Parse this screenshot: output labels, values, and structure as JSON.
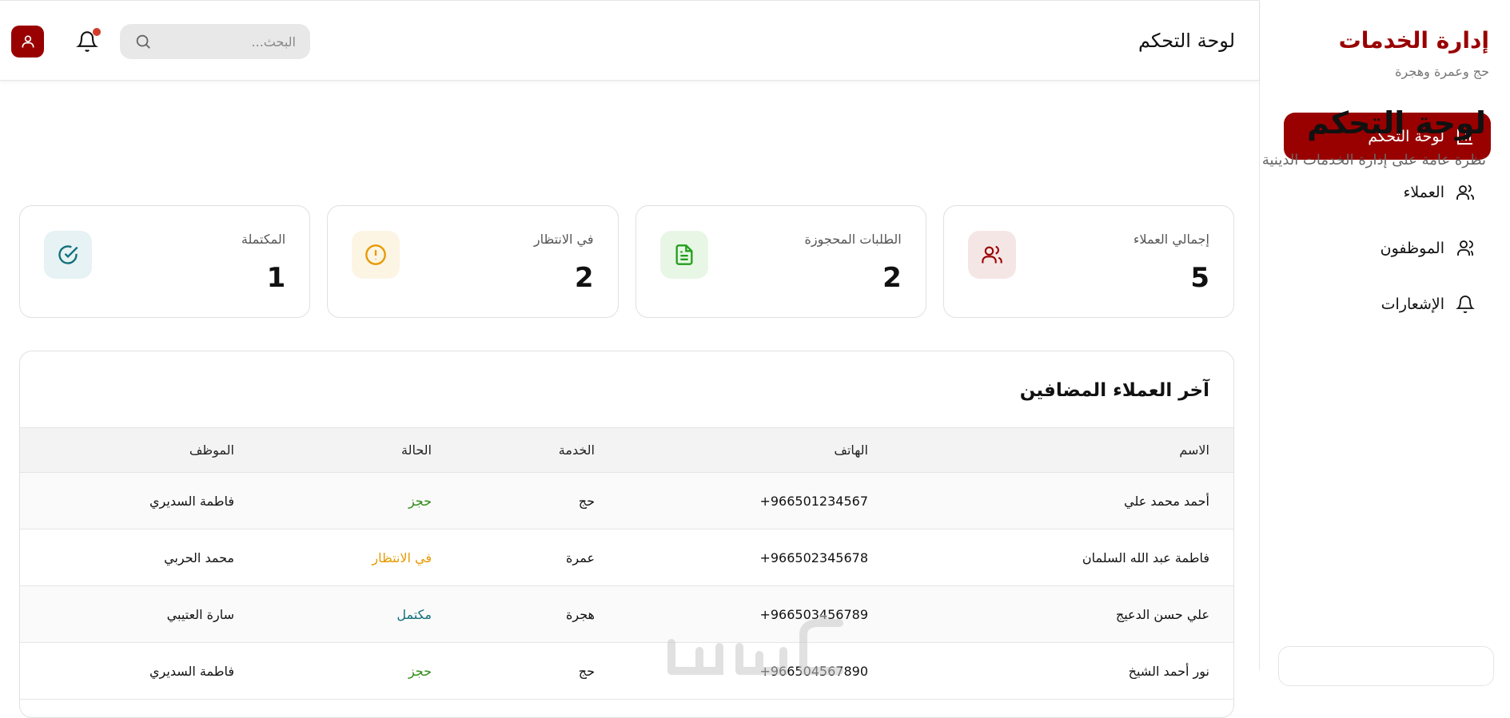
{
  "sidebar": {
    "title": "إدارة الخدمات",
    "subtitle": "حج وعمرة وهجرة",
    "items": [
      {
        "label": "لوحة التحكم",
        "icon": "bar-chart-icon",
        "active": true
      },
      {
        "label": "العملاء",
        "icon": "users-icon"
      },
      {
        "label": "الموظفون",
        "icon": "user-group-icon"
      },
      {
        "label": "الإشعارات",
        "icon": "bell-icon"
      }
    ]
  },
  "header": {
    "title": "لوحة التحكم",
    "search_placeholder": "البحث...",
    "notification_dot": true
  },
  "main": {
    "title": "لوحة التحكم",
    "subtitle": "نظرة عامة على إدارة الخدمات الدينية",
    "stats": [
      {
        "label": "إجمالي العملاء",
        "value": "5",
        "icon": "users-icon",
        "color": "#990000",
        "bg": "#f5e6e6"
      },
      {
        "label": "الطلبات المحجوزة",
        "value": "2",
        "icon": "document-icon",
        "color": "#22a01a",
        "bg": "#e8f6e6"
      },
      {
        "label": "في الانتظار",
        "value": "2",
        "icon": "alert-circle-icon",
        "color": "#e69a00",
        "bg": "#fdf5e4"
      },
      {
        "label": "المكتملة",
        "value": "1",
        "icon": "check-circle-icon",
        "color": "#0f6f7a",
        "bg": "#e6f2f3"
      }
    ],
    "recent": {
      "title": "آخر العملاء المضافين",
      "columns": [
        "الاسم",
        "الهاتف",
        "الخدمة",
        "الحالة",
        "الموظف"
      ],
      "rows": [
        {
          "name": "أحمد محمد علي",
          "phone": "+966501234567",
          "service": "حج",
          "status": "حجز",
          "status_type": "booked",
          "employee": "فاطمة السديري"
        },
        {
          "name": "فاطمة عبد الله السلمان",
          "phone": "+966502345678",
          "service": "عمرة",
          "status": "في الانتظار",
          "status_type": "pending",
          "employee": "محمد الحربي"
        },
        {
          "name": "علي حسن الدعيج",
          "phone": "+966503456789",
          "service": "هجرة",
          "status": "مكتمل",
          "status_type": "done",
          "employee": "سارة العتيبي"
        },
        {
          "name": "نور أحمد الشيخ",
          "phone": "+966504567890",
          "service": "حج",
          "status": "حجز",
          "status_type": "booked",
          "employee": "فاطمة السديري"
        }
      ]
    }
  },
  "colors": {
    "primary": "#990000",
    "booked": "#2e8b16",
    "pending": "#e69a00",
    "done": "#0f6f7a"
  },
  "watermark": "خمسات"
}
